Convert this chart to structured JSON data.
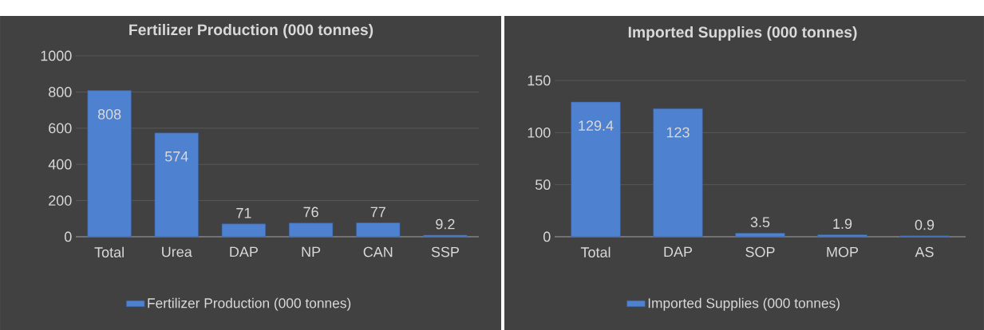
{
  "chart_data": [
    {
      "type": "bar",
      "title": "Fertilizer Production (000 tonnes)",
      "categories": [
        "Total",
        "Urea",
        "DAP",
        "NP",
        "CAN",
        "SSP"
      ],
      "series": [
        {
          "name": "Fertilizer Production (000 tonnes)",
          "color": "#4f81d1",
          "values": [
            808,
            574,
            71,
            76,
            77,
            9.2
          ]
        }
      ],
      "ylim": [
        0,
        1000
      ],
      "yticks": [
        0,
        200,
        400,
        600,
        800,
        1000
      ],
      "grid": "y",
      "legend": "bottom",
      "data_labels": true
    },
    {
      "type": "bar",
      "title": "Imported Supplies (000 tonnes)",
      "categories": [
        "Total",
        "DAP",
        "SOP",
        "MOP",
        "AS"
      ],
      "series": [
        {
          "name": "Imported Supplies (000 tonnes)",
          "color": "#4f81d1",
          "values": [
            129.4,
            123,
            3.5,
            1.9,
            0.9
          ]
        }
      ],
      "ylim": [
        0,
        150
      ],
      "yticks": [
        0,
        50,
        100,
        150
      ],
      "grid": "y",
      "legend": "bottom",
      "data_labels": true
    }
  ]
}
